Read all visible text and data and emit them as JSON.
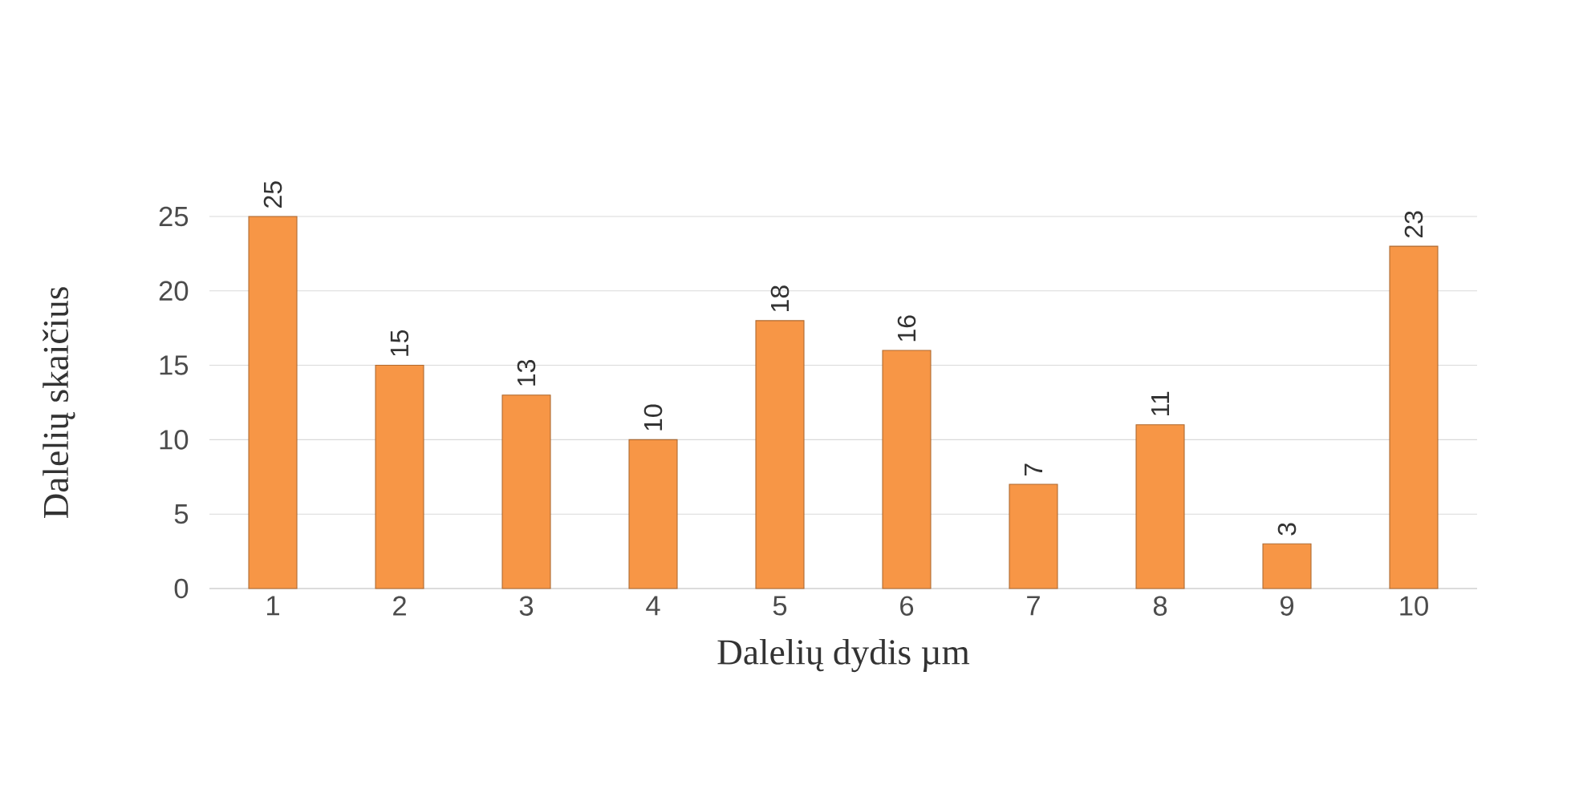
{
  "chart_data": {
    "type": "bar",
    "xlabel": "Dalelių dydis µm",
    "ylabel": "Dalelių skaičius",
    "categories": [
      "1",
      "2",
      "3",
      "4",
      "5",
      "6",
      "7",
      "8",
      "9",
      "10"
    ],
    "values": [
      25,
      15,
      13,
      10,
      18,
      16,
      7,
      11,
      3,
      23
    ],
    "color": "#f79646",
    "ylim": [
      0,
      25
    ],
    "yticks": [
      0,
      5,
      10,
      15,
      20,
      25
    ],
    "grid": "y",
    "data_labels": true
  }
}
